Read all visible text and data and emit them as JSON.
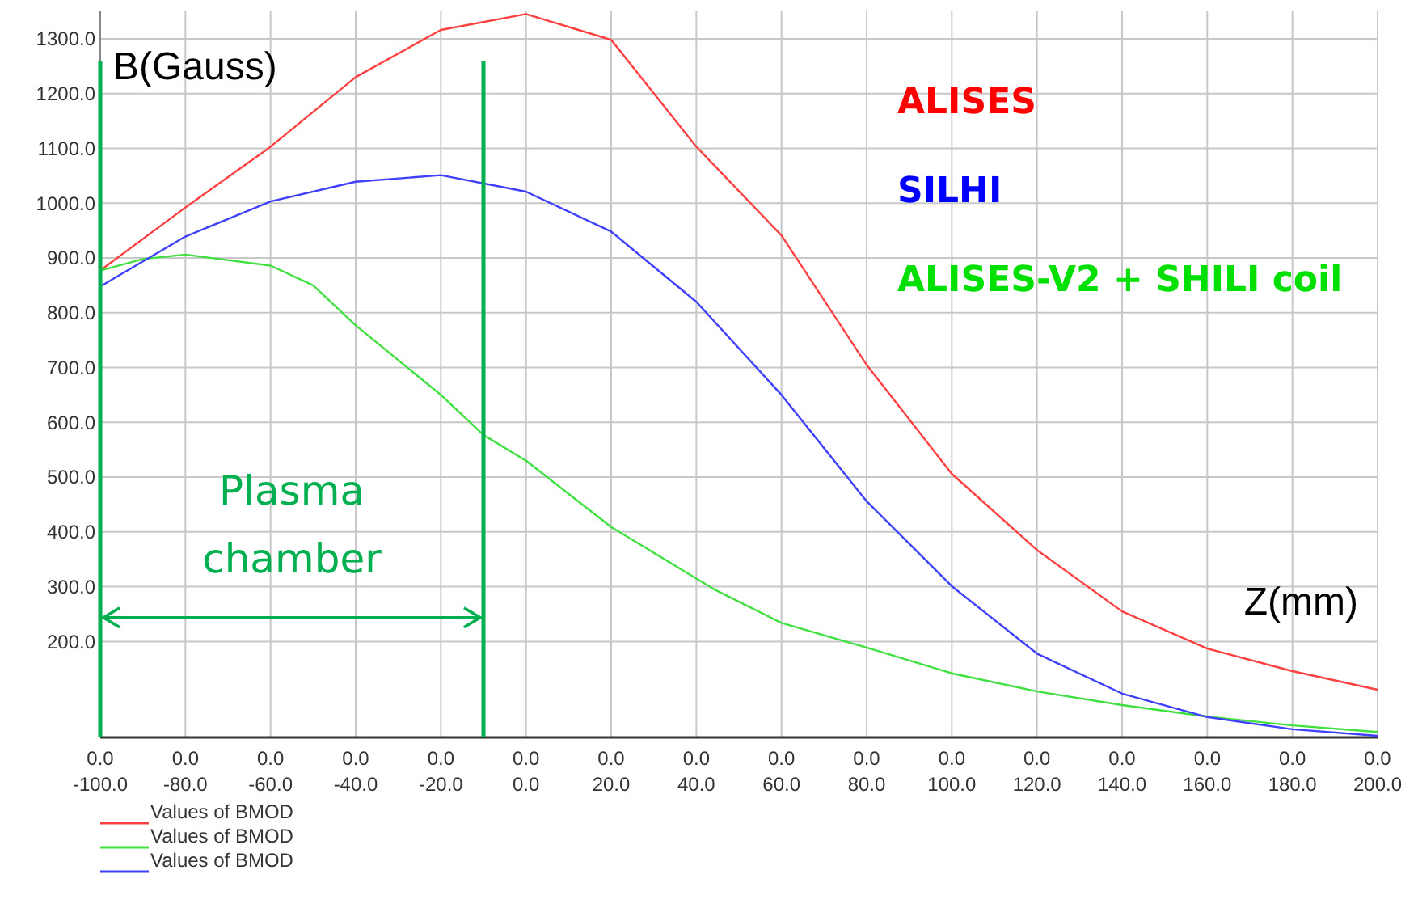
{
  "chart_data": {
    "type": "line",
    "xlabel": "Z(mm)",
    "ylabel": "B(Gauss)",
    "x": [
      -100,
      -80,
      -60,
      -40,
      -20,
      0,
      20,
      40,
      60,
      80,
      100,
      120,
      140,
      160,
      180,
      200
    ],
    "series": [
      {
        "name": "Values of BMOD",
        "color": "#ff4040",
        "values": [
          877,
          992,
          1103,
          1230,
          1316,
          1345,
          1298,
          1103,
          941,
          705,
          506,
          367,
          255,
          187,
          146,
          112
        ]
      },
      {
        "name": "Values of BMOD",
        "color": "#40e040",
        "x": [
          -100,
          -90,
          -80,
          -60,
          -50,
          -40,
          -20,
          -10,
          0,
          20,
          44,
          60,
          80,
          100,
          120,
          140,
          160,
          180,
          200
        ],
        "values": [
          877,
          898,
          906,
          886,
          850,
          777,
          650,
          577,
          530,
          409,
          296,
          234,
          189,
          142,
          109,
          84,
          63,
          47,
          35
        ]
      },
      {
        "name": "Values of BMOD",
        "color": "#4040ff",
        "values": [
          848,
          939,
          1003,
          1039,
          1051,
          1021,
          948,
          820,
          650,
          456,
          301,
          178,
          105,
          62,
          40,
          28
        ]
      }
    ],
    "xlim": [
      -100,
      200
    ],
    "ylim": [
      25,
      1350
    ],
    "xticks": [
      {
        "value": -100,
        "label": "-100.0"
      },
      {
        "value": -80,
        "label": "-80.0"
      },
      {
        "value": -60,
        "label": "-60.0"
      },
      {
        "value": -40,
        "label": "-40.0"
      },
      {
        "value": -20,
        "label": "-20.0"
      },
      {
        "value": 0,
        "label": "0.0"
      },
      {
        "value": 20,
        "label": "20.0"
      },
      {
        "value": 40,
        "label": "40.0"
      },
      {
        "value": 60,
        "label": "60.0"
      },
      {
        "value": 80,
        "label": "80.0"
      },
      {
        "value": 100,
        "label": "100.0"
      },
      {
        "value": 120,
        "label": "120.0"
      },
      {
        "value": 140,
        "label": "140.0"
      },
      {
        "value": 160,
        "label": "160.0"
      },
      {
        "value": 180,
        "label": "180.0"
      },
      {
        "value": 200,
        "label": "200.0"
      }
    ],
    "yticks": [
      {
        "value": 200,
        "label": "200.0"
      },
      {
        "value": 300,
        "label": "300.0"
      },
      {
        "value": 400,
        "label": "400.0"
      },
      {
        "value": 500,
        "label": "500.0"
      },
      {
        "value": 600,
        "label": "600.0"
      },
      {
        "value": 700,
        "label": "700.0"
      },
      {
        "value": 800,
        "label": "800.0"
      },
      {
        "value": 900,
        "label": "900.0"
      },
      {
        "value": 1000,
        "label": "1000.0"
      },
      {
        "value": 1100,
        "label": "1100.0"
      },
      {
        "value": 1200,
        "label": "1200.0"
      },
      {
        "value": 1300,
        "label": "1300.0"
      }
    ],
    "grid": true,
    "legend": "bottom left",
    "line_style": "solid",
    "marker": "none",
    "ref_lines": [
      {
        "axis": "x",
        "value": -100,
        "color": "#00b050"
      },
      {
        "axis": "x",
        "value": -10,
        "color": "#00b050"
      }
    ],
    "annotations": [
      "ALISES",
      "ALISES-V2 + SHILI coil",
      "SILHI",
      "Plasma chamber",
      "0.0",
      "0.0",
      "0.0",
      "0.0",
      "0.0",
      "0.0",
      "0.0",
      "0.0",
      "0.0",
      "0.0",
      "0.0",
      "0.0",
      "0.0",
      "0.0",
      "0.0",
      "0.0"
    ]
  }
}
